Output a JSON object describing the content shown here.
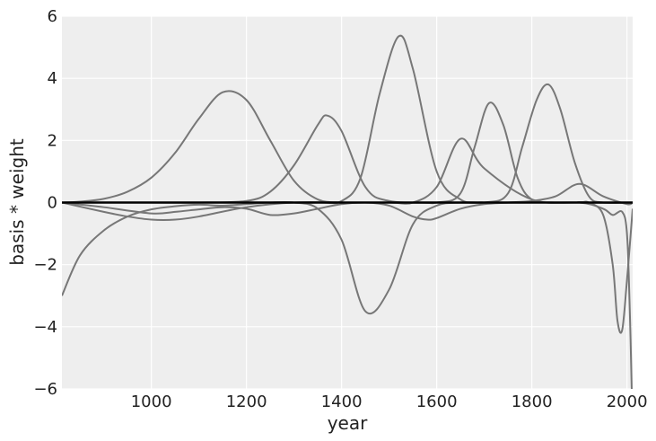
{
  "chart_data": {
    "type": "line",
    "title": "",
    "xlabel": "year",
    "ylabel": "basis * weight",
    "xlim": [
      812,
      2012
    ],
    "ylim": [
      -6,
      6
    ],
    "x_ticks": [
      1000,
      1200,
      1400,
      1600,
      1800,
      2000
    ],
    "y_ticks": [
      -6,
      -4,
      -2,
      0,
      2,
      4,
      6
    ],
    "x_tick_labels": [
      "1000",
      "1200",
      "1400",
      "1600",
      "1800",
      "2000"
    ],
    "y_tick_labels": [
      "−6",
      "−4",
      "−2",
      "0",
      "2",
      "4",
      "6"
    ],
    "grid": true,
    "background": "#eeeeee",
    "grid_color": "#ffffff",
    "series_color": "#777777",
    "zero_line_color": "#000000",
    "series": [
      {
        "x": [
          812,
          850,
          900,
          950,
          1000,
          1050,
          1100,
          1150,
          1200,
          1250,
          1300,
          1350,
          1400,
          1450,
          1500,
          1550,
          1600,
          1700,
          1800,
          1900,
          2012
        ],
        "y": [
          0,
          0.03,
          0.12,
          0.35,
          0.8,
          1.6,
          2.7,
          3.55,
          3.3,
          2.0,
          0.7,
          0.1,
          0,
          0,
          0,
          0,
          0,
          0,
          0,
          0,
          0
        ]
      },
      {
        "x": [
          812,
          850,
          900,
          950,
          1000,
          1050,
          1100,
          1150,
          1200,
          1250,
          1300,
          1350,
          1400,
          1450,
          1500,
          1550,
          1600,
          1650,
          1700,
          1800,
          1900,
          2012
        ],
        "y": [
          -3.0,
          -1.7,
          -0.9,
          -0.45,
          -0.22,
          -0.12,
          -0.07,
          -0.1,
          -0.05,
          0,
          0,
          -0.2,
          -1.2,
          -3.5,
          -2.8,
          -0.7,
          -0.1,
          0,
          0,
          0,
          0,
          0
        ]
      },
      {
        "x": [
          812,
          900,
          1000,
          1100,
          1200,
          1250,
          1300,
          1350,
          1370,
          1400,
          1450,
          1500,
          1600,
          1700,
          1800,
          1900,
          2012
        ],
        "y": [
          0,
          0,
          0,
          0,
          0.05,
          0.35,
          1.2,
          2.5,
          2.8,
          2.3,
          0.5,
          0.05,
          0,
          0,
          0,
          0,
          0
        ]
      },
      {
        "x": [
          812,
          1000,
          1200,
          1350,
          1400,
          1440,
          1480,
          1520,
          1550,
          1600,
          1650,
          1700,
          1800,
          1900,
          2012
        ],
        "y": [
          0,
          0,
          0,
          0,
          0.05,
          0.8,
          3.5,
          5.35,
          4.3,
          1.0,
          0.1,
          0,
          0,
          0,
          0
        ]
      },
      {
        "x": [
          812,
          900,
          1000,
          1050,
          1100,
          1150,
          1200,
          1250,
          1300,
          1350,
          1400,
          1450,
          1500,
          1550,
          1580,
          1600,
          1650,
          1700,
          1750,
          1800,
          1850,
          1900,
          1950,
          2000,
          2012
        ],
        "y": [
          0,
          -0.15,
          -0.35,
          -0.3,
          -0.22,
          -0.15,
          -0.2,
          -0.4,
          -0.35,
          -0.2,
          -0.05,
          0,
          -0.1,
          -0.45,
          -0.55,
          -0.5,
          -0.2,
          -0.05,
          0,
          0.05,
          0.2,
          0.6,
          0.2,
          -0.05,
          0
        ]
      },
      {
        "x": [
          812,
          900,
          950,
          1000,
          1050,
          1100,
          1200,
          1300,
          1400,
          1500,
          1550,
          1600,
          1650,
          1700,
          1800,
          1900,
          2012
        ],
        "y": [
          0,
          -0.3,
          -0.45,
          -0.55,
          -0.55,
          -0.45,
          -0.15,
          0,
          0,
          0,
          0,
          0.5,
          2.05,
          1.1,
          0.1,
          0,
          0
        ]
      },
      {
        "x": [
          812,
          1500,
          1600,
          1650,
          1680,
          1710,
          1740,
          1770,
          1800,
          1850,
          1900,
          2012
        ],
        "y": [
          0,
          0,
          0,
          0.3,
          1.8,
          3.2,
          2.5,
          0.8,
          0.1,
          0,
          0,
          0
        ]
      },
      {
        "x": [
          812,
          1600,
          1700,
          1750,
          1780,
          1810,
          1835,
          1860,
          1890,
          1920,
          1950,
          2012
        ],
        "y": [
          0,
          0,
          0,
          0.3,
          1.8,
          3.3,
          3.8,
          3.0,
          1.3,
          0.2,
          0,
          0
        ]
      },
      {
        "x": [
          812,
          1700,
          1800,
          1850,
          1900,
          1920,
          1950,
          1970,
          1980,
          1990,
          2000,
          2012
        ],
        "y": [
          0,
          0,
          0,
          0,
          0,
          0,
          -0.4,
          -2.0,
          -3.8,
          -4.1,
          -2.5,
          -0.2
        ]
      },
      {
        "x": [
          812,
          1800,
          1900,
          1950,
          1970,
          1990,
          2000,
          2006,
          2010
        ],
        "y": [
          0,
          0,
          0,
          -0.2,
          -0.4,
          -0.3,
          -1.0,
          -3.5,
          -6.0
        ]
      }
    ]
  }
}
